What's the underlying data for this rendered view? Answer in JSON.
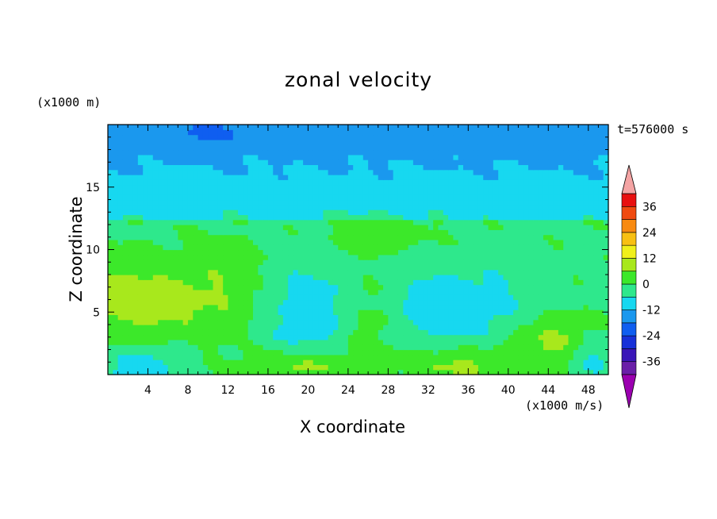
{
  "chart_data": {
    "type": "heatmap",
    "title": "zonal velocity",
    "xlabel": "X coordinate",
    "ylabel": "Z coordinate",
    "x_unit_label": "(x1000 m/s)",
    "y_unit_label": "(x1000 m)",
    "time_label": "t=576000 s",
    "xlim": [
      0,
      50
    ],
    "ylim": [
      0,
      20
    ],
    "x_ticks": [
      4,
      8,
      12,
      16,
      20,
      24,
      28,
      32,
      36,
      40,
      44,
      48
    ],
    "y_ticks": [
      5,
      10,
      15
    ],
    "colorbar": {
      "levels": [
        -42,
        -36,
        -30,
        -24,
        -18,
        -12,
        -6,
        0,
        6,
        12,
        18,
        24,
        30,
        36,
        42
      ],
      "tick_labels": [
        "36",
        "24",
        "12",
        "0",
        "-12",
        "-24",
        "-36"
      ],
      "tick_values": [
        36,
        24,
        12,
        0,
        -12,
        -24,
        -36
      ],
      "extend": "both",
      "colors": [
        "#9b00b0",
        "#6a1fa8",
        "#3a16b8",
        "#1730d8",
        "#0f5ef0",
        "#1a98ee",
        "#17d8f0",
        "#2ee88c",
        "#3ce82a",
        "#a8e81c",
        "#f0f01a",
        "#f8c012",
        "#f88a10",
        "#f04a10",
        "#e81010",
        "#f4a4a4"
      ]
    },
    "field_description_by_region": [
      {
        "z_range": [
          18,
          20
        ],
        "value": -14
      },
      {
        "z_range": [
          13,
          18
        ],
        "value": -7
      },
      {
        "z_range": [
          9,
          13
        ],
        "value": -1
      },
      {
        "z_range": [
          4,
          8
        ],
        "x_range": [
          0,
          8
        ],
        "value": 9
      },
      {
        "z_range": [
          3,
          7
        ],
        "x_range": [
          30,
          40
        ],
        "value": -10
      },
      {
        "z_range": [
          0,
          1.5
        ],
        "x_range": [
          16,
          22
        ],
        "value": 10
      },
      {
        "z_range": [
          0,
          1.5
        ],
        "x_range": [
          32,
          38
        ],
        "value": 9
      }
    ],
    "grid": false
  }
}
